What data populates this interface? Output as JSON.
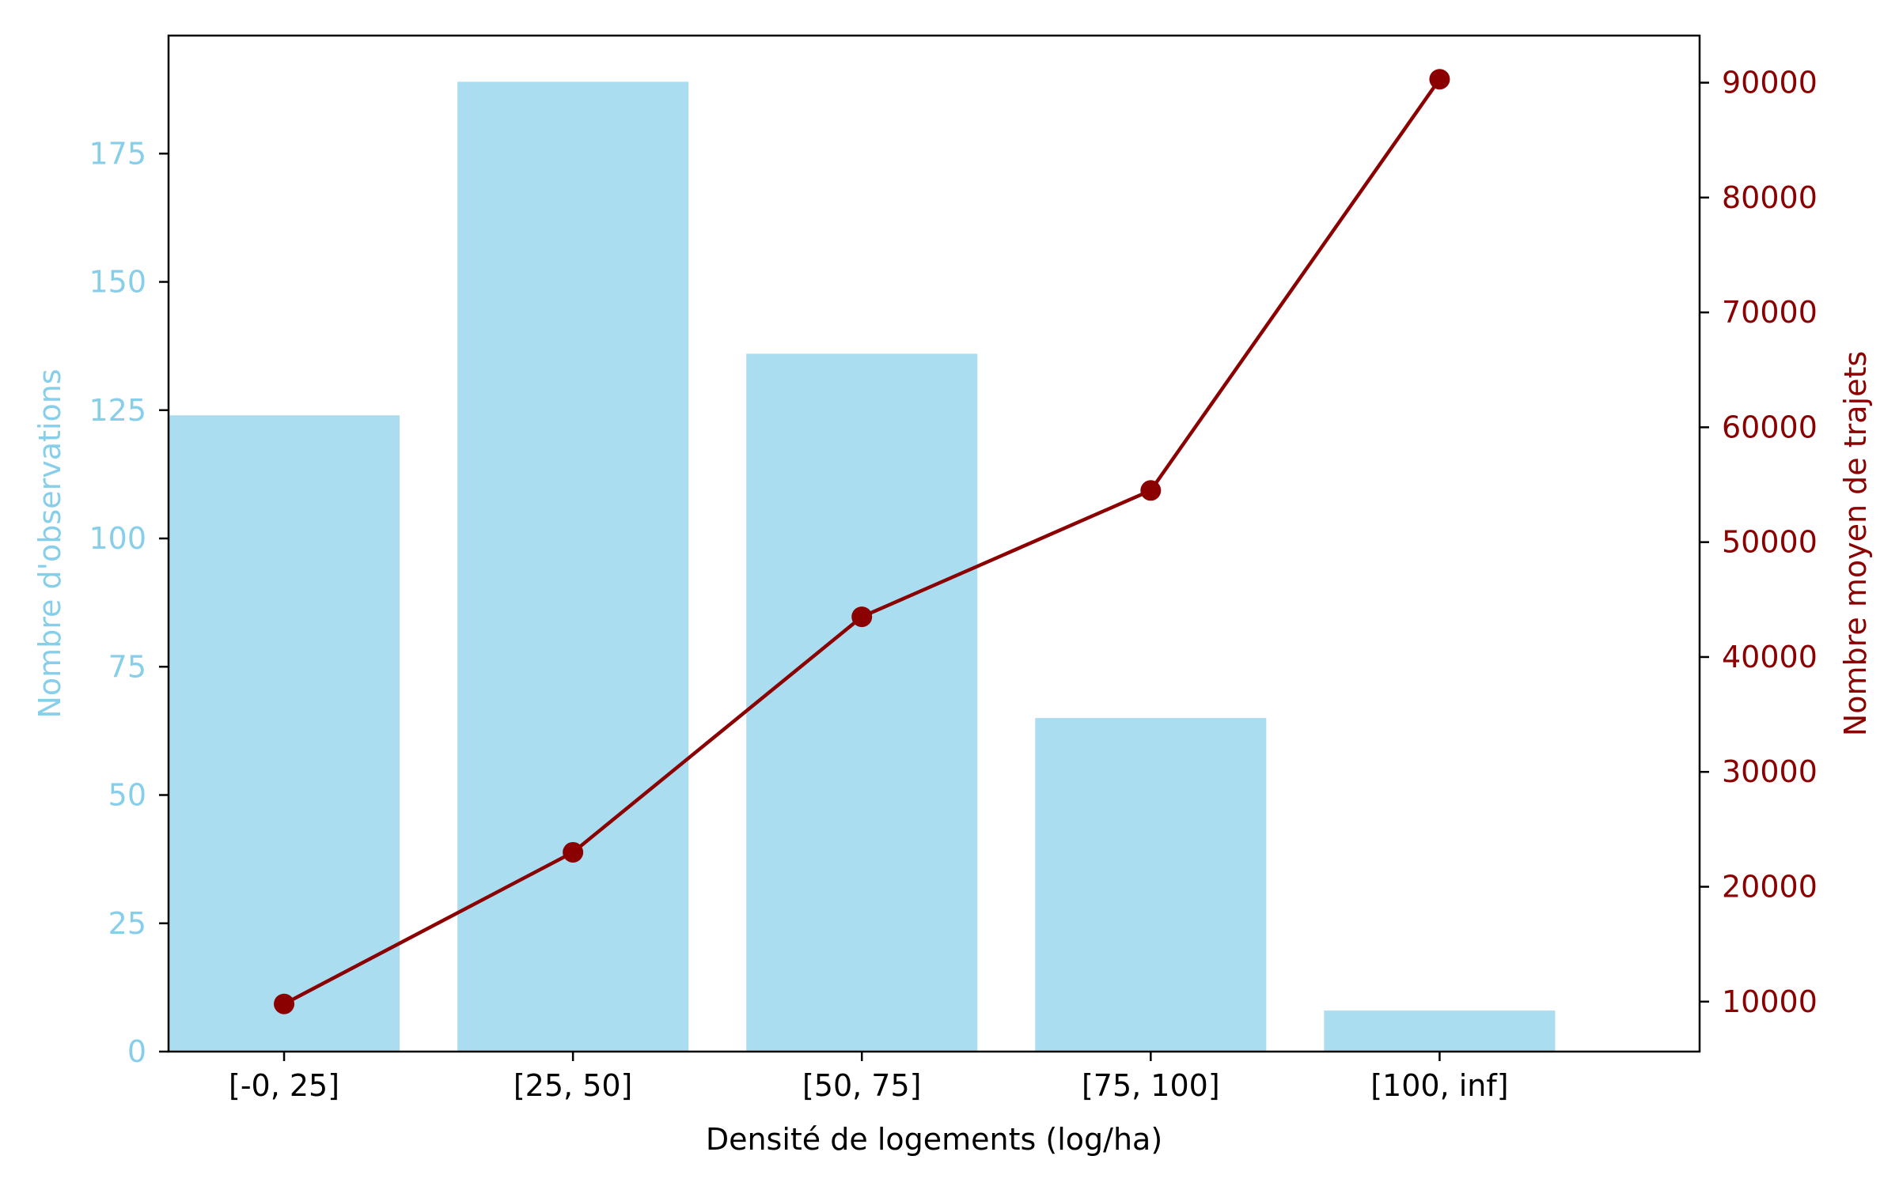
{
  "chart_data": {
    "type": "bar",
    "title": "",
    "xlabel": "Densité de logements (log/ha)",
    "ylabel_left": "Nombre d'observations",
    "ylabel_right": "Nombre moyen de trajets",
    "categories": [
      "[-0, 25]",
      "[25, 50]",
      "[50, 75]",
      "[75, 100]",
      "[100, inf]"
    ],
    "series": [
      {
        "name": "Nombre d'observations",
        "kind": "bar",
        "axis": "left",
        "color": "#87CEEB",
        "values": [
          124,
          189,
          136,
          65,
          8
        ]
      },
      {
        "name": "Nombre moyen de trajets",
        "kind": "line",
        "axis": "right",
        "color": "#8B0000",
        "values": [
          9800,
          23000,
          43500,
          54500,
          90300
        ]
      }
    ],
    "ylim_left": [
      0,
      198
    ],
    "yticks_left": [
      0,
      25,
      50,
      75,
      100,
      125,
      150,
      175
    ],
    "ylim_right": [
      5650,
      94100
    ],
    "yticks_right": [
      10000,
      20000,
      30000,
      40000,
      50000,
      60000,
      70000,
      80000,
      90000
    ],
    "colors": {
      "left_axis": "#87CEEB",
      "right_axis": "#8B0000",
      "axis_line": "#000000",
      "text": "#000000"
    }
  }
}
